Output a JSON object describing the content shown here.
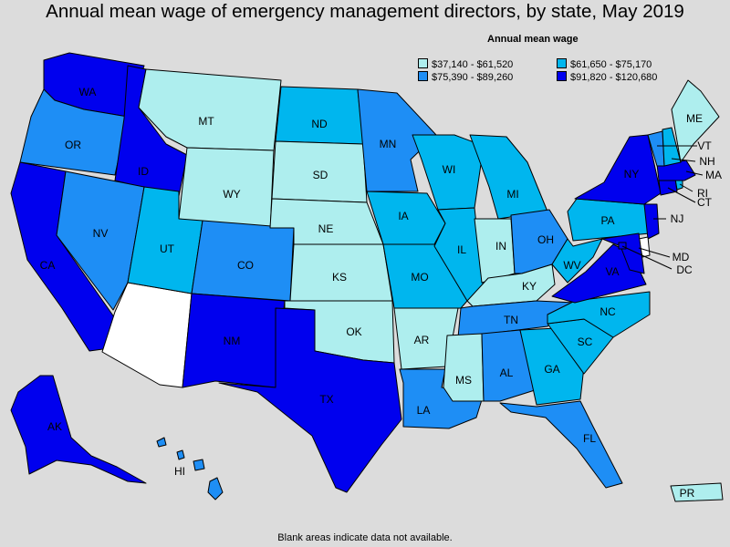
{
  "title": "Annual mean wage of emergency management directors, by state, May 2019",
  "legend": {
    "title": "Annual mean wage",
    "items": [
      {
        "label": "$37,140 - $61,520",
        "color": "#aeeeee"
      },
      {
        "label": "$61,650 - $75,170",
        "color": "#00b6ee"
      },
      {
        "label": "$75,390 - $89,260",
        "color": "#1e8ef5"
      },
      {
        "label": "$91,820 - $120,680",
        "color": "#0000ee"
      }
    ]
  },
  "colors": {
    "background": "#dcdcdc",
    "no_data": "#ffffff",
    "tier1": "#aeeeee",
    "tier2": "#00b6ee",
    "tier3": "#1e8ef5",
    "tier4": "#0000ee"
  },
  "states": {
    "WA": {
      "label": "WA",
      "tier": 4
    },
    "OR": {
      "label": "OR",
      "tier": 3
    },
    "CA": {
      "label": "CA",
      "tier": 4
    },
    "ID": {
      "label": "ID",
      "tier": 4
    },
    "NV": {
      "label": "NV",
      "tier": 3
    },
    "AZ": {
      "label": "",
      "tier": 0
    },
    "MT": {
      "label": "MT",
      "tier": 1
    },
    "WY": {
      "label": "WY",
      "tier": 1
    },
    "UT": {
      "label": "UT",
      "tier": 2
    },
    "CO": {
      "label": "CO",
      "tier": 3
    },
    "NM": {
      "label": "NM",
      "tier": 4
    },
    "ND": {
      "label": "ND",
      "tier": 2
    },
    "SD": {
      "label": "SD",
      "tier": 1
    },
    "NE": {
      "label": "NE",
      "tier": 1
    },
    "KS": {
      "label": "KS",
      "tier": 1
    },
    "OK": {
      "label": "OK",
      "tier": 1
    },
    "TX": {
      "label": "TX",
      "tier": 4
    },
    "MN": {
      "label": "MN",
      "tier": 3
    },
    "IA": {
      "label": "IA",
      "tier": 2
    },
    "MO": {
      "label": "MO",
      "tier": 2
    },
    "AR": {
      "label": "AR",
      "tier": 1
    },
    "LA": {
      "label": "LA",
      "tier": 3
    },
    "WI": {
      "label": "WI",
      "tier": 2
    },
    "IL": {
      "label": "IL",
      "tier": 2
    },
    "MI": {
      "label": "MI",
      "tier": 2
    },
    "IN": {
      "label": "IN",
      "tier": 1
    },
    "OH": {
      "label": "OH",
      "tier": 3
    },
    "KY": {
      "label": "KY",
      "tier": 1
    },
    "TN": {
      "label": "TN",
      "tier": 3
    },
    "MS": {
      "label": "MS",
      "tier": 1
    },
    "AL": {
      "label": "AL",
      "tier": 3
    },
    "GA": {
      "label": "GA",
      "tier": 2
    },
    "FL": {
      "label": "FL",
      "tier": 3
    },
    "SC": {
      "label": "SC",
      "tier": 2
    },
    "NC": {
      "label": "NC",
      "tier": 2
    },
    "VA": {
      "label": "VA",
      "tier": 4
    },
    "WV": {
      "label": "WV",
      "tier": 2
    },
    "PA": {
      "label": "PA",
      "tier": 2
    },
    "NY": {
      "label": "NY",
      "tier": 4
    },
    "NJ": {
      "label": "NJ",
      "tier": 4
    },
    "DE": {
      "label": "",
      "tier": 0
    },
    "MD": {
      "label": "MD",
      "tier": 4
    },
    "DC": {
      "label": "DC",
      "tier": 4
    },
    "CT": {
      "label": "CT",
      "tier": 4
    },
    "RI": {
      "label": "RI",
      "tier": 2
    },
    "MA": {
      "label": "MA",
      "tier": 4
    },
    "VT": {
      "label": "VT",
      "tier": 3
    },
    "NH": {
      "label": "NH",
      "tier": 2
    },
    "ME": {
      "label": "ME",
      "tier": 1
    },
    "AK": {
      "label": "AK",
      "tier": 4
    },
    "HI": {
      "label": "HI",
      "tier": 3
    },
    "PR": {
      "label": "PR",
      "tier": 1
    }
  },
  "footnote": "Blank areas indicate data not available."
}
